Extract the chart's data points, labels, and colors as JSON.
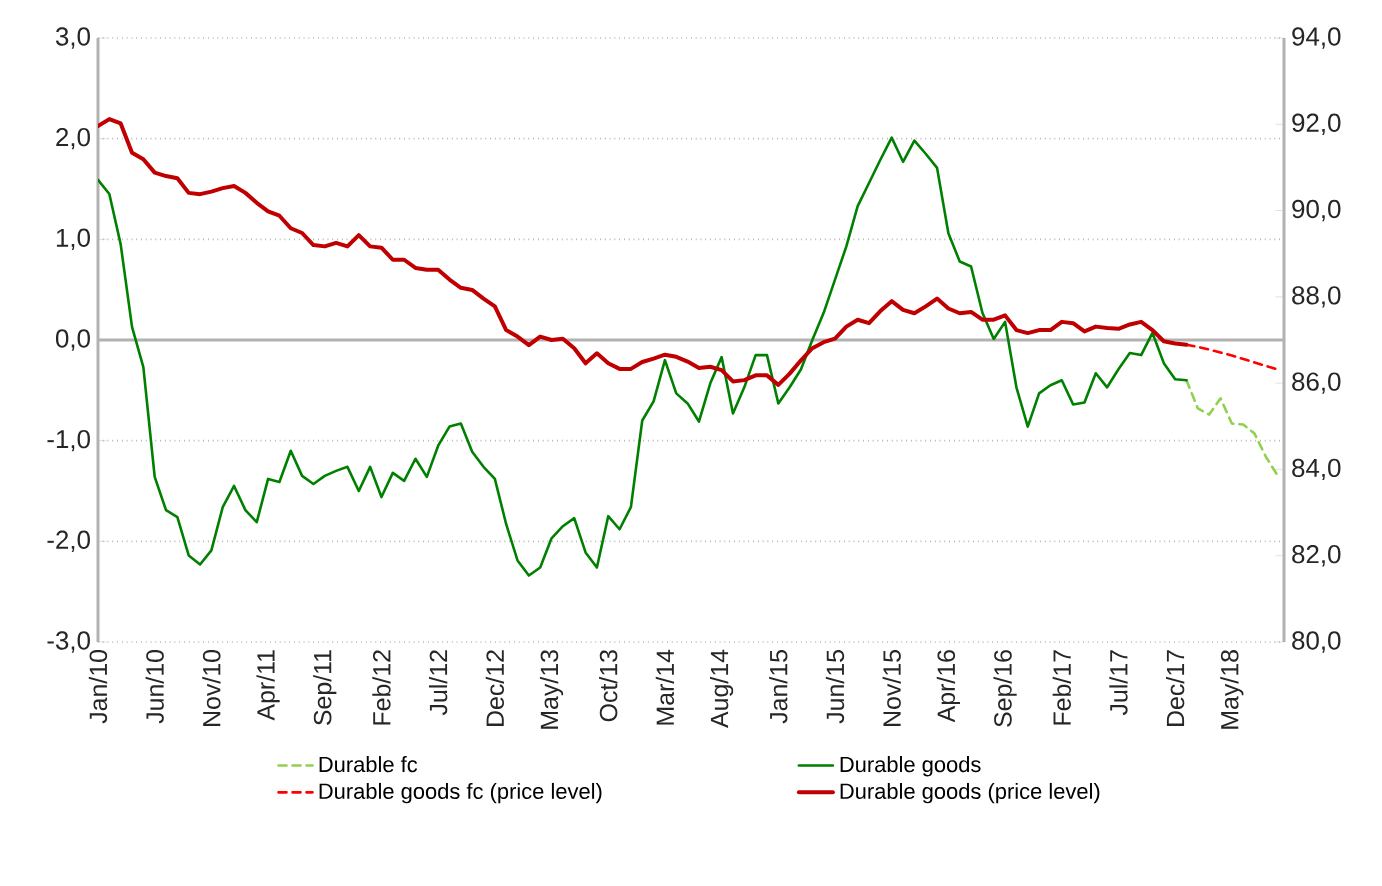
{
  "chart_data": {
    "type": "line",
    "categories": [
      "Jan/10",
      null,
      null,
      null,
      null,
      "Jun/10",
      null,
      null,
      null,
      null,
      "Nov/10",
      null,
      null,
      null,
      null,
      "Apr/11",
      null,
      null,
      null,
      null,
      "Sep/11",
      null,
      null,
      null,
      null,
      "Feb/12",
      null,
      null,
      null,
      null,
      "Jul/12",
      null,
      null,
      null,
      null,
      "Dec/12",
      null,
      null,
      null,
      null,
      "May/13",
      null,
      null,
      null,
      null,
      "Oct/13",
      null,
      null,
      null,
      null,
      "Mar/14",
      null,
      null,
      null,
      null,
      "Aug/14",
      null,
      null,
      null,
      null,
      "Jan/15",
      null,
      null,
      null,
      null,
      "Jun/15",
      null,
      null,
      null,
      null,
      "Nov/15",
      null,
      null,
      null,
      null,
      "Apr/16",
      null,
      null,
      null,
      null,
      "Sep/16",
      null,
      null,
      null,
      null,
      "Feb/17",
      null,
      null,
      null,
      null,
      "Jul/17",
      null,
      null,
      null,
      null,
      "Dec/17",
      null,
      null,
      null,
      null,
      "May/18",
      null,
      null,
      null,
      null
    ],
    "series": [
      {
        "name": "Durable fc",
        "color": "#92d050",
        "line_style": "dashed",
        "values": [
          null,
          null,
          null,
          null,
          null,
          null,
          null,
          null,
          null,
          null,
          null,
          null,
          null,
          null,
          null,
          null,
          null,
          null,
          null,
          null,
          null,
          null,
          null,
          null,
          null,
          null,
          null,
          null,
          null,
          null,
          null,
          null,
          null,
          null,
          null,
          null,
          null,
          null,
          null,
          null,
          null,
          null,
          null,
          null,
          null,
          null,
          null,
          null,
          null,
          null,
          null,
          null,
          null,
          null,
          null,
          null,
          null,
          null,
          null,
          null,
          null,
          null,
          null,
          null,
          null,
          null,
          null,
          null,
          null,
          null,
          null,
          null,
          null,
          null,
          null,
          null,
          null,
          null,
          null,
          null,
          null,
          null,
          null,
          null,
          null,
          null,
          null,
          null,
          null,
          null,
          null,
          null,
          null,
          null,
          null,
          null,
          -0.4,
          -0.68,
          -0.74,
          -0.58,
          -0.83,
          -0.84,
          -0.93,
          -1.16,
          -1.34
        ]
      },
      {
        "name": "Durable goods",
        "color": "#008000",
        "line_style": "solid",
        "values": [
          1.59,
          1.45,
          0.95,
          0.13,
          -0.27,
          -1.36,
          -1.69,
          -1.76,
          -2.14,
          -2.23,
          -2.09,
          -1.66,
          -1.45,
          -1.69,
          -1.81,
          -1.38,
          -1.41,
          -1.1,
          -1.35,
          -1.43,
          -1.35,
          -1.3,
          -1.26,
          -1.5,
          -1.26,
          -1.56,
          -1.32,
          -1.4,
          -1.18,
          -1.36,
          -1.05,
          -0.86,
          -0.83,
          -1.11,
          -1.26,
          -1.38,
          -1.83,
          -2.19,
          -2.34,
          -2.26,
          -1.97,
          -1.85,
          -1.77,
          -2.11,
          -2.26,
          -1.75,
          -1.88,
          -1.66,
          -0.8,
          -0.61,
          -0.2,
          -0.53,
          -0.63,
          -0.81,
          -0.43,
          -0.17,
          -0.73,
          -0.47,
          -0.15,
          -0.15,
          -0.63,
          -0.47,
          -0.29,
          0.0,
          0.27,
          0.6,
          0.93,
          1.33,
          1.56,
          1.79,
          2.01,
          1.77,
          1.98,
          1.85,
          1.71,
          1.06,
          0.78,
          0.73,
          0.27,
          0.01,
          0.18,
          -0.47,
          -0.86,
          -0.53,
          -0.45,
          -0.4,
          -0.64,
          -0.62,
          -0.33,
          -0.47,
          -0.29,
          -0.13,
          -0.15,
          0.07,
          -0.23,
          -0.39,
          -0.4,
          null,
          null,
          null,
          null,
          null,
          null,
          null,
          null
        ]
      },
      {
        "name": "Durable goods fc (price level)",
        "color": "#ff0000",
        "line_style": "dashed",
        "axis": "y2",
        "values": [
          null,
          null,
          null,
          null,
          null,
          null,
          null,
          null,
          null,
          null,
          null,
          null,
          null,
          null,
          null,
          null,
          null,
          null,
          null,
          null,
          null,
          null,
          null,
          null,
          null,
          null,
          null,
          null,
          null,
          null,
          null,
          null,
          null,
          null,
          null,
          null,
          null,
          null,
          null,
          null,
          null,
          null,
          null,
          null,
          null,
          null,
          null,
          null,
          null,
          null,
          null,
          null,
          null,
          null,
          null,
          null,
          null,
          null,
          null,
          null,
          null,
          null,
          null,
          null,
          null,
          null,
          null,
          null,
          null,
          null,
          null,
          null,
          null,
          null,
          null,
          null,
          null,
          null,
          null,
          null,
          null,
          null,
          null,
          null,
          null,
          null,
          null,
          null,
          null,
          null,
          null,
          null,
          null,
          null,
          null,
          null,
          86.89,
          86.84,
          86.78,
          86.71,
          86.64,
          86.56,
          86.48,
          86.4,
          86.32
        ]
      },
      {
        "name": "Durable goods (price level)",
        "color": "#c00000",
        "line_style": "solid",
        "axis": "y2",
        "values": [
          91.96,
          92.12,
          92.02,
          91.34,
          91.19,
          90.88,
          90.8,
          90.75,
          90.41,
          90.38,
          90.44,
          90.52,
          90.57,
          90.41,
          90.18,
          89.98,
          89.88,
          89.59,
          89.48,
          89.2,
          89.17,
          89.25,
          89.17,
          89.43,
          89.17,
          89.14,
          88.86,
          88.86,
          88.67,
          88.63,
          88.63,
          88.4,
          88.21,
          88.16,
          87.96,
          87.78,
          87.23,
          87.08,
          86.88,
          87.08,
          87.0,
          87.03,
          86.81,
          86.46,
          86.69,
          86.46,
          86.33,
          86.33,
          86.49,
          86.57,
          86.66,
          86.61,
          86.5,
          86.35,
          86.38,
          86.3,
          86.04,
          86.07,
          86.18,
          86.18,
          85.96,
          86.22,
          86.53,
          86.81,
          86.95,
          87.03,
          87.31,
          87.47,
          87.39,
          87.67,
          87.9,
          87.7,
          87.62,
          87.78,
          87.96,
          87.73,
          87.62,
          87.65,
          87.47,
          87.47,
          87.57,
          87.23,
          87.16,
          87.23,
          87.23,
          87.42,
          87.39,
          87.2,
          87.31,
          87.28,
          87.26,
          87.36,
          87.42,
          87.23,
          86.97,
          86.92,
          86.89,
          null,
          null,
          null,
          null,
          null,
          null,
          null,
          null
        ]
      }
    ],
    "ylim": [
      -3,
      3
    ],
    "yticks": [
      {
        "value": -3,
        "label": "-3,0"
      },
      {
        "value": -2,
        "label": "-2,0"
      },
      {
        "value": -1,
        "label": "-1,0"
      },
      {
        "value": 0,
        "label": "0,0"
      },
      {
        "value": 1,
        "label": "1,0"
      },
      {
        "value": 2,
        "label": "2,0"
      },
      {
        "value": 3,
        "label": "3,0"
      }
    ],
    "y2lim": [
      80,
      94
    ],
    "y2ticks": [
      {
        "value": 80,
        "label": "80,0"
      },
      {
        "value": 82,
        "label": "82,0"
      },
      {
        "value": 84,
        "label": "84,0"
      },
      {
        "value": 86,
        "label": "86,0"
      },
      {
        "value": 88,
        "label": "88,0"
      },
      {
        "value": 90,
        "label": "90,0"
      },
      {
        "value": 92,
        "label": "92,0"
      },
      {
        "value": 94,
        "label": "94,0"
      }
    ],
    "grid": "y",
    "legend": "bottom",
    "marker": "none"
  }
}
